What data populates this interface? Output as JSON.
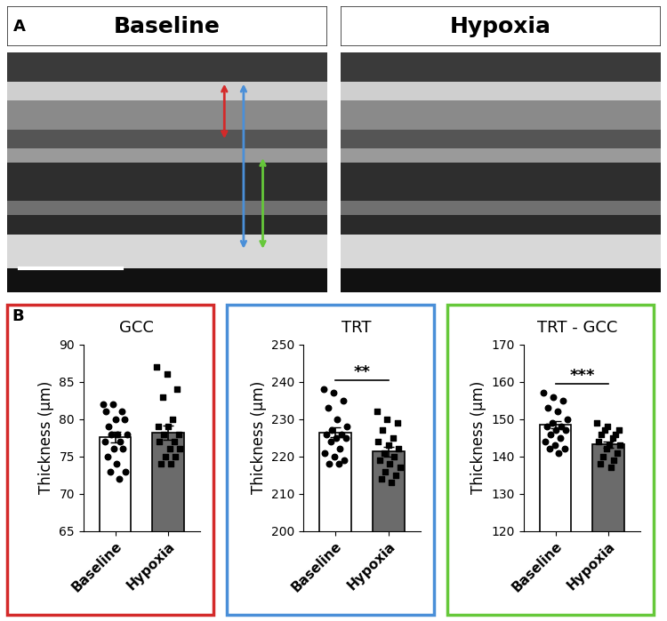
{
  "panel_a": {
    "label": "A",
    "images": [
      "Baseline",
      "Hypoxia"
    ]
  },
  "panel_b": {
    "label": "B"
  },
  "chart_data": [
    {
      "type": "bar",
      "title": "GCC",
      "y_label": "Thickness (µm)",
      "color": "#d42a2a",
      "categories": [
        "Baseline",
        "Hypoxia"
      ],
      "values": [
        77.6,
        78.2
      ],
      "errors": [
        0.7,
        1.0
      ],
      "colors": [
        "#ffffff",
        "#6b6b6b"
      ],
      "points": [
        {
          "marker": "circle",
          "values": [
            82,
            82,
            81,
            81,
            80,
            80,
            79,
            78,
            78,
            78,
            77,
            77,
            76,
            76,
            75,
            74,
            73,
            73,
            72
          ]
        },
        {
          "marker": "square",
          "values": [
            87,
            86,
            84,
            83,
            80,
            79,
            79,
            78,
            78,
            77,
            77,
            76,
            76,
            75,
            75,
            74,
            74
          ]
        }
      ],
      "ylim": [
        65,
        90
      ],
      "yticks": [
        65,
        70,
        75,
        80,
        85,
        90
      ]
    },
    {
      "type": "bar",
      "title": "TRT",
      "y_label": "Thickness (µm)",
      "color": "#4a8fd8",
      "categories": [
        "Baseline",
        "Hypoxia"
      ],
      "values": [
        226.4,
        221.3
      ],
      "errors": [
        1.3,
        1.3
      ],
      "colors": [
        "#ffffff",
        "#6b6b6b"
      ],
      "points": [
        {
          "marker": "circle",
          "values": [
            238,
            237,
            235,
            233,
            230,
            228,
            227,
            226,
            226,
            225,
            225,
            224,
            222,
            221,
            220,
            219,
            218,
            218
          ]
        },
        {
          "marker": "square",
          "values": [
            232,
            230,
            229,
            227,
            225,
            224,
            223,
            222,
            221,
            220,
            219,
            218,
            217,
            216,
            215,
            214,
            213
          ]
        }
      ],
      "annotation": "**",
      "ylim": [
        200,
        250
      ],
      "yticks": [
        200,
        210,
        220,
        230,
        240,
        250
      ]
    },
    {
      "type": "bar",
      "title": "TRT - GCC",
      "y_label": "Thickness (µm)",
      "color": "#66c83a",
      "categories": [
        "Baseline",
        "Hypoxia"
      ],
      "values": [
        148.6,
        143.2
      ],
      "errors": [
        1.0,
        0.8
      ],
      "colors": [
        "#ffffff",
        "#6b6b6b"
      ],
      "points": [
        {
          "marker": "circle",
          "values": [
            157,
            156,
            155,
            153,
            152,
            150,
            149,
            148,
            148,
            147,
            147,
            146,
            145,
            144,
            143,
            142,
            142,
            141
          ]
        },
        {
          "marker": "square",
          "values": [
            149,
            148,
            147,
            147,
            146,
            146,
            145,
            144,
            143,
            143,
            142,
            141,
            140,
            139,
            138,
            137
          ]
        }
      ],
      "annotation": "***",
      "ylim": [
        120,
        170
      ],
      "yticks": [
        120,
        130,
        140,
        150,
        160,
        170
      ]
    }
  ]
}
